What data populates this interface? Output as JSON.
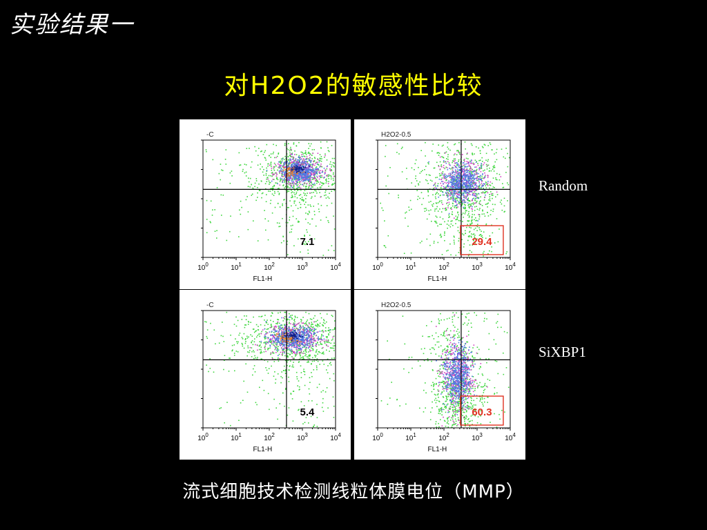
{
  "slide_title": "实验结果一",
  "main_title": "对H2O2的敏感性比较",
  "caption": "流式细胞技术检测线粒体膜电位（MMP）",
  "row_labels": [
    "Random",
    "SiXBP1"
  ],
  "colors": {
    "background": "#000000",
    "title": "#ffff00",
    "highlight_box": "#e03020",
    "dots_green": "#3ed63e",
    "dots_blue": "#4f79e0",
    "dots_magenta": "#d040c0",
    "dots_orange": "#f08020",
    "dots_navy": "#10208a"
  },
  "chart_data": [
    {
      "type": "scatter",
      "title": "-C",
      "xlabel": "FL1-H",
      "x_scale": "log",
      "xlim": [
        1,
        10000
      ],
      "xticks": [
        "10^0",
        "10^1",
        "10^2",
        "10^3",
        "10^4"
      ],
      "quadrant_value": "7.1",
      "highlighted": false,
      "row": "Random"
    },
    {
      "type": "scatter",
      "title": "H2O2-0.5",
      "xlabel": "FL1-H",
      "x_scale": "log",
      "xlim": [
        1,
        10000
      ],
      "xticks": [
        "10^0",
        "10^1",
        "10^2",
        "10^3",
        "10^4"
      ],
      "quadrant_value": "29.4",
      "highlighted": true,
      "row": "Random"
    },
    {
      "type": "scatter",
      "title": "-C",
      "xlabel": "FL1-H",
      "x_scale": "log",
      "xlim": [
        1,
        10000
      ],
      "xticks": [
        "10^0",
        "10^1",
        "10^2",
        "10^3",
        "10^4"
      ],
      "quadrant_value": "5.4",
      "highlighted": false,
      "row": "SiXBP1"
    },
    {
      "type": "scatter",
      "title": "H2O2-0.5",
      "xlabel": "FL1-H",
      "x_scale": "log",
      "xlim": [
        1,
        10000
      ],
      "xticks": [
        "10^0",
        "10^1",
        "10^2",
        "10^3",
        "10^4"
      ],
      "quadrant_value": "60.3",
      "highlighted": true,
      "row": "SiXBP1"
    }
  ]
}
